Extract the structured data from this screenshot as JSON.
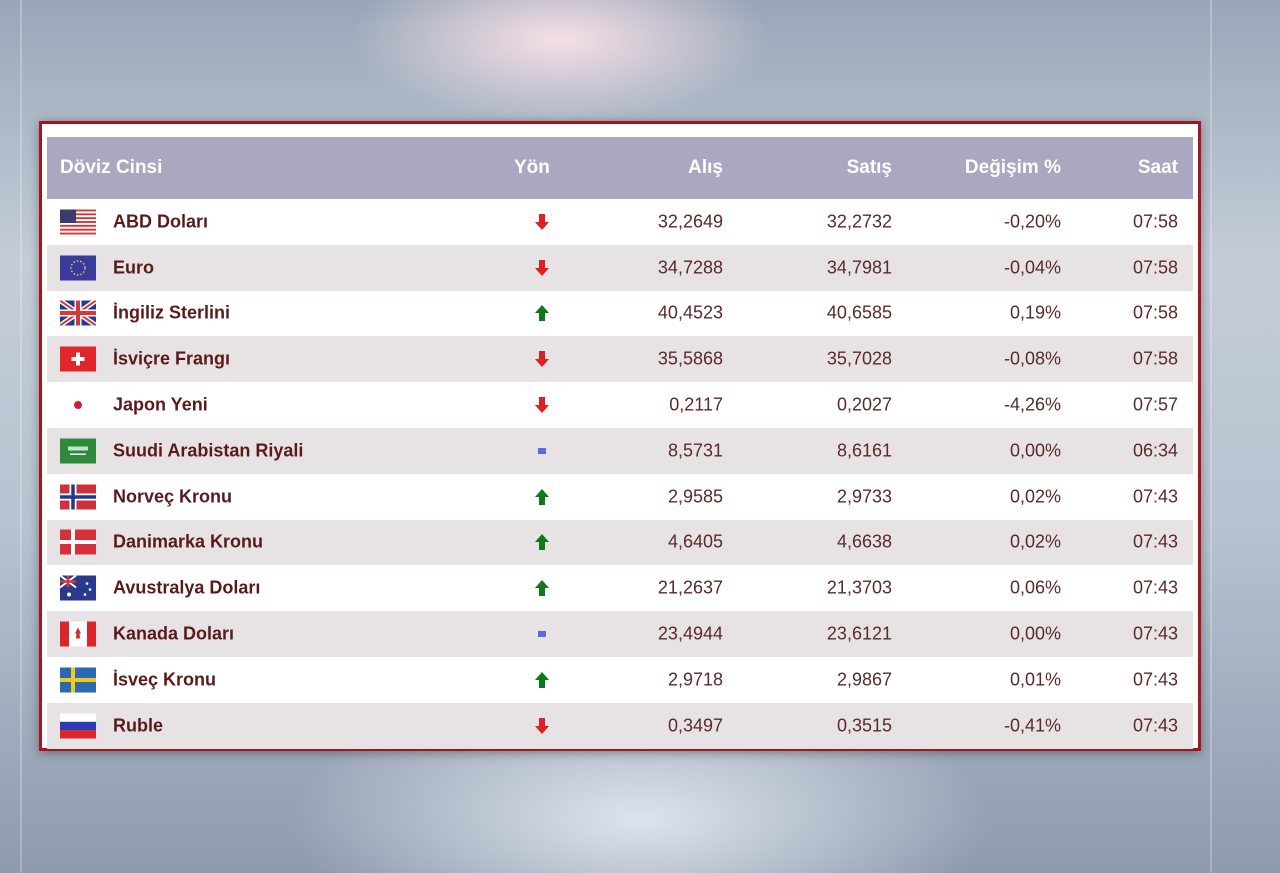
{
  "header": {
    "name": "Döviz Cinsi",
    "direction": "Yön",
    "buy": "Alış",
    "sell": "Satış",
    "change": "Değişim %",
    "time": "Saat"
  },
  "colors": {
    "up": "#0d7a1a",
    "down": "#e02020",
    "flat": "#5a6be0",
    "border": "#a3161b",
    "header_bg": "#aaa7c0"
  },
  "rows": [
    {
      "flag": "us",
      "name": "ABD Doları",
      "direction": "down",
      "buy": "32,2649",
      "sell": "32,2732",
      "change": "-0,20%",
      "time": "07:58"
    },
    {
      "flag": "eu",
      "name": "Euro",
      "direction": "down",
      "buy": "34,7288",
      "sell": "34,7981",
      "change": "-0,04%",
      "time": "07:58"
    },
    {
      "flag": "gb",
      "name": "İngiliz Sterlini",
      "direction": "up",
      "buy": "40,4523",
      "sell": "40,6585",
      "change": "0,19%",
      "time": "07:58"
    },
    {
      "flag": "ch",
      "name": "İsviçre Frangı",
      "direction": "down",
      "buy": "35,5868",
      "sell": "35,7028",
      "change": "-0,08%",
      "time": "07:58"
    },
    {
      "flag": "jp",
      "name": "Japon Yeni",
      "direction": "down",
      "buy": "0,2117",
      "sell": "0,2027",
      "change": "-4,26%",
      "time": "07:57"
    },
    {
      "flag": "sa",
      "name": "Suudi Arabistan Riyali",
      "direction": "flat",
      "buy": "8,5731",
      "sell": "8,6161",
      "change": "0,00%",
      "time": "06:34"
    },
    {
      "flag": "no",
      "name": "Norveç Kronu",
      "direction": "up",
      "buy": "2,9585",
      "sell": "2,9733",
      "change": "0,02%",
      "time": "07:43"
    },
    {
      "flag": "dk",
      "name": "Danimarka Kronu",
      "direction": "up",
      "buy": "4,6405",
      "sell": "4,6638",
      "change": "0,02%",
      "time": "07:43"
    },
    {
      "flag": "au",
      "name": "Avustralya Doları",
      "direction": "up",
      "buy": "21,2637",
      "sell": "21,3703",
      "change": "0,06%",
      "time": "07:43"
    },
    {
      "flag": "ca",
      "name": "Kanada Doları",
      "direction": "flat",
      "buy": "23,4944",
      "sell": "23,6121",
      "change": "0,00%",
      "time": "07:43"
    },
    {
      "flag": "se",
      "name": "İsveç Kronu",
      "direction": "up",
      "buy": "2,9718",
      "sell": "2,9867",
      "change": "0,01%",
      "time": "07:43"
    },
    {
      "flag": "ru",
      "name": "Ruble",
      "direction": "down",
      "buy": "0,3497",
      "sell": "0,3515",
      "change": "-0,41%",
      "time": "07:43"
    }
  ]
}
